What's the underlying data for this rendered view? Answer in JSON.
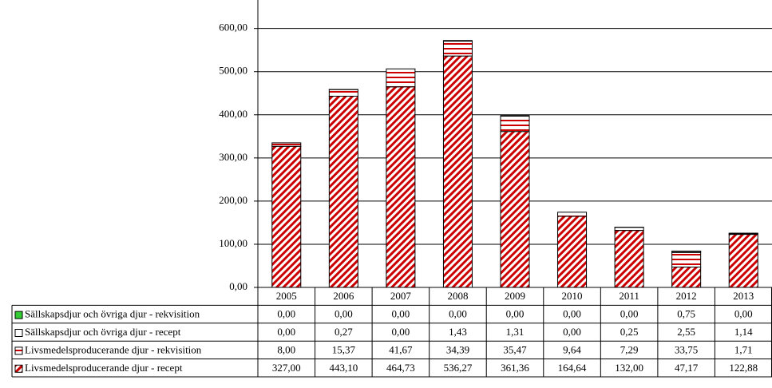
{
  "chart_data": {
    "type": "stacked-bar",
    "categories": [
      "2005",
      "2006",
      "2007",
      "2008",
      "2009",
      "2010",
      "2011",
      "2012",
      "2013"
    ],
    "series": [
      {
        "name": "Sällskapsdjur och övriga djur - rekvisition",
        "color": "#33cc33",
        "pattern": "solid",
        "values": [
          0,
          0,
          0,
          0,
          0,
          0,
          0,
          0.75,
          0
        ],
        "value_labels": [
          "0,00",
          "0,00",
          "0,00",
          "0,00",
          "0,00",
          "0,00",
          "0,00",
          "0,75",
          "0,00"
        ]
      },
      {
        "name": "Sällskapsdjur och övriga djur - recept",
        "color": "#ffffff",
        "pattern": "solid",
        "values": [
          0,
          0.27,
          0,
          1.43,
          1.31,
          0,
          0.25,
          2.55,
          1.14
        ],
        "value_labels": [
          "0,00",
          "0,27",
          "0,00",
          "1,43",
          "1,31",
          "0,00",
          "0,25",
          "2,55",
          "1,14"
        ]
      },
      {
        "name": "Livsmedelsproducerande djur - rekvisition",
        "color": "#cc0000",
        "pattern": "horizontal",
        "values": [
          8,
          15.37,
          41.67,
          34.39,
          35.47,
          9.64,
          7.29,
          33.75,
          1.71
        ],
        "value_labels": [
          "8,00",
          "15,37",
          "41,67",
          "34,39",
          "35,47",
          "9,64",
          "7,29",
          "33,75",
          "1,71"
        ]
      },
      {
        "name": "Livsmedelsproducerande djur - recept",
        "color": "#cc0000",
        "pattern": "diagonal",
        "values": [
          327,
          443.1,
          464.73,
          536.27,
          361.36,
          164.64,
          132,
          47.17,
          122.88
        ],
        "value_labels": [
          "327,00",
          "443,10",
          "464,73",
          "536,27",
          "361,36",
          "164,64",
          "132,00",
          "47,17",
          "122,88"
        ]
      }
    ],
    "ylim": [
      0,
      666
    ],
    "yticks": [
      {
        "value": 0,
        "label": "0,00"
      },
      {
        "value": 100,
        "label": "100,00"
      },
      {
        "value": 200,
        "label": "200,00"
      },
      {
        "value": 300,
        "label": "300,00"
      },
      {
        "value": 400,
        "label": "400,00"
      },
      {
        "value": 500,
        "label": "500,00"
      },
      {
        "value": 600,
        "label": "600,00"
      }
    ],
    "grid": true
  }
}
